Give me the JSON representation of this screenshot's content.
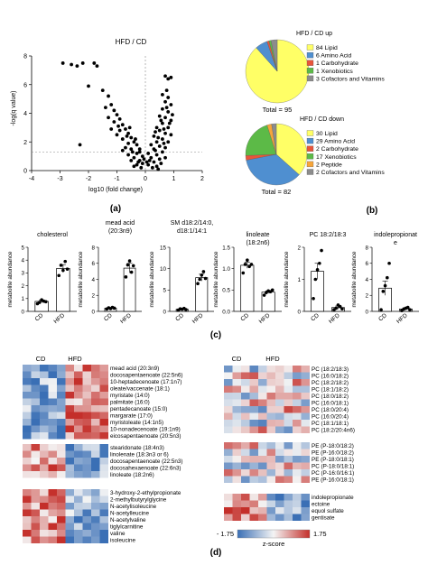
{
  "panel_labels": {
    "a": "(a)",
    "b": "(b)",
    "c": "(c)",
    "d": "(d)"
  },
  "chart_data": [
    {
      "type": "scatter",
      "title": "HFD / CD",
      "xlabel": "log10 (fold change)",
      "ylabel": "-log(q value)",
      "xlim": [
        -4,
        2
      ],
      "ylim": [
        0,
        8
      ],
      "xticks": [
        "-4",
        "-3",
        "-2",
        "-1",
        "0",
        "1",
        "2"
      ],
      "yticks": [
        "0",
        "2",
        "4",
        "6",
        "8"
      ],
      "threshold_y": 1.3,
      "threshold_x": 0,
      "grid": false,
      "points": [
        [
          -2.9,
          7.5
        ],
        [
          -2.6,
          7.4
        ],
        [
          -2.2,
          7.5
        ],
        [
          -2.4,
          7.3
        ],
        [
          -1.8,
          7.5
        ],
        [
          -1.7,
          7.3
        ],
        [
          -2.0,
          5.9
        ],
        [
          -1.5,
          5.6
        ],
        [
          -1.3,
          5.2
        ],
        [
          -1.2,
          4.6
        ],
        [
          -2.3,
          1.8
        ],
        [
          -1.1,
          4.2
        ],
        [
          -1.0,
          3.9
        ],
        [
          -0.9,
          3.6
        ],
        [
          -0.8,
          3.2
        ],
        [
          -1.3,
          3.7
        ],
        [
          -1.4,
          4.4
        ],
        [
          -1.1,
          3.4
        ],
        [
          -0.7,
          2.9
        ],
        [
          -0.6,
          2.6
        ],
        [
          -0.9,
          2.8
        ],
        [
          -0.5,
          2.3
        ],
        [
          -0.4,
          2.0
        ],
        [
          -0.3,
          1.8
        ],
        [
          -0.6,
          1.9
        ],
        [
          -0.8,
          2.2
        ],
        [
          -0.2,
          1.5
        ],
        [
          -0.5,
          1.5
        ],
        [
          -0.7,
          1.6
        ],
        [
          -0.3,
          1.2
        ],
        [
          -0.4,
          0.9
        ],
        [
          -0.2,
          0.7
        ],
        [
          -0.6,
          1.1
        ],
        [
          -0.1,
          0.5
        ],
        [
          -0.3,
          0.4
        ],
        [
          -0.5,
          0.7
        ],
        [
          -0.15,
          0.2
        ],
        [
          -0.25,
          0.6
        ],
        [
          -0.8,
          1.4
        ],
        [
          -1.0,
          2.5
        ],
        [
          -0.45,
          1.3
        ],
        [
          -0.35,
          2.2
        ],
        [
          -0.65,
          2.4
        ],
        [
          -0.55,
          3.0
        ],
        [
          -0.95,
          3.1
        ],
        [
          -1.2,
          2.9
        ],
        [
          -0.1,
          1.0
        ],
        [
          -0.2,
          1.3
        ],
        [
          -0.05,
          0.8
        ],
        [
          -0.4,
          0.3
        ],
        [
          0.7,
          6.6
        ],
        [
          0.9,
          6.5
        ],
        [
          0.8,
          6.4
        ],
        [
          0.75,
          5.6
        ],
        [
          0.6,
          5.3
        ],
        [
          0.8,
          5.1
        ],
        [
          0.7,
          4.8
        ],
        [
          0.9,
          4.6
        ],
        [
          0.6,
          4.3
        ],
        [
          0.8,
          4.1
        ],
        [
          0.5,
          3.8
        ],
        [
          0.7,
          3.7
        ],
        [
          0.9,
          3.5
        ],
        [
          0.6,
          3.3
        ],
        [
          0.4,
          3.0
        ],
        [
          0.8,
          3.0
        ],
        [
          0.5,
          2.8
        ],
        [
          0.7,
          2.6
        ],
        [
          0.3,
          2.4
        ],
        [
          0.9,
          2.5
        ],
        [
          0.6,
          2.2
        ],
        [
          0.4,
          2.0
        ],
        [
          0.2,
          1.8
        ],
        [
          0.8,
          2.0
        ],
        [
          0.5,
          1.7
        ],
        [
          0.3,
          1.5
        ],
        [
          0.7,
          1.6
        ],
        [
          0.1,
          1.2
        ],
        [
          0.4,
          1.1
        ],
        [
          0.6,
          1.3
        ],
        [
          0.2,
          0.9
        ],
        [
          0.5,
          0.8
        ],
        [
          0.3,
          0.6
        ],
        [
          0.1,
          0.4
        ],
        [
          0.4,
          0.3
        ],
        [
          0.7,
          0.9
        ],
        [
          0.25,
          0.2
        ],
        [
          0.15,
          0.7
        ],
        [
          0.55,
          0.5
        ],
        [
          0.35,
          1.4
        ],
        [
          0.45,
          2.3
        ],
        [
          0.65,
          2.9
        ],
        [
          0.85,
          3.3
        ],
        [
          0.75,
          4.4
        ],
        [
          0.95,
          3.9
        ],
        [
          0.55,
          3.5
        ],
        [
          0.35,
          2.7
        ],
        [
          0.65,
          1.9
        ],
        [
          0.05,
          0.6
        ],
        [
          0.45,
          0.1
        ]
      ]
    },
    {
      "type": "pie",
      "title": "HFD / CD up",
      "total_label": "Total = 95",
      "slices": [
        {
          "label": "84 Lipid",
          "value": 84,
          "color": "#ffff66"
        },
        {
          "label": "6 Amino Acid",
          "value": 6,
          "color": "#4f8fd0"
        },
        {
          "label": "1 Carbohydrate",
          "value": 1,
          "color": "#e8553a"
        },
        {
          "label": "1 Xenobiotics",
          "value": 1,
          "color": "#5cba47"
        },
        {
          "label": "3 Cofactors and Vitamins",
          "value": 3,
          "color": "#8c8c8c"
        }
      ]
    },
    {
      "type": "pie",
      "title": "HFD / CD down",
      "total_label": "Total = 82",
      "slices": [
        {
          "label": "30 Lipid",
          "value": 30,
          "color": "#ffff66"
        },
        {
          "label": "29 Amino Acid",
          "value": 29,
          "color": "#4f8fd0"
        },
        {
          "label": "2 Carbohydrate",
          "value": 2,
          "color": "#e8553a"
        },
        {
          "label": "17 Xenobiotics",
          "value": 17,
          "color": "#5cba47"
        },
        {
          "label": "2 Peptide",
          "value": 2,
          "color": "#f6a53a"
        },
        {
          "label": "2 Cofactors and Vitamins",
          "value": 2,
          "color": "#8c8c8c"
        }
      ]
    },
    {
      "type": "bar",
      "title": "cholesterol",
      "ylabel": "metabolite abundance",
      "categories": [
        "CD",
        "HFD"
      ],
      "values": [
        0.78,
        3.35
      ],
      "errors": [
        0.1,
        0.3
      ],
      "ylim": [
        0,
        5
      ],
      "yticks": [
        "0",
        "1",
        "2",
        "3",
        "4",
        "5"
      ],
      "points": [
        [
          0.6,
          0.7,
          0.9,
          0.8,
          0.75
        ],
        [
          2.8,
          3.6,
          3.2,
          3.9,
          3.3
        ]
      ]
    },
    {
      "type": "bar",
      "title": "mead acid (20:3n9)",
      "ylabel": "metabolite abundance",
      "categories": [
        "CD",
        "HFD"
      ],
      "values": [
        0.4,
        5.4
      ],
      "errors": [
        0.08,
        0.6
      ],
      "ylim": [
        0,
        8
      ],
      "yticks": [
        "0",
        "2",
        "4",
        "6",
        "8"
      ],
      "points": [
        [
          0.3,
          0.45,
          0.35,
          0.5,
          0.4
        ],
        [
          4.3,
          5.8,
          6.3,
          4.9,
          5.7
        ]
      ]
    },
    {
      "type": "bar",
      "title": "SM d18:2/14:0, d18:1/14:1",
      "ylabel": "metabolite abundance",
      "categories": [
        "CD",
        "HFD"
      ],
      "values": [
        0.5,
        7.9
      ],
      "errors": [
        0.1,
        0.8
      ],
      "ylim": [
        0,
        15
      ],
      "yticks": [
        "0",
        "5",
        "10",
        "15"
      ],
      "points": [
        [
          0.3,
          0.6,
          0.5,
          0.7,
          0.4
        ],
        [
          6.5,
          7.5,
          8.5,
          9.3,
          7.7
        ]
      ]
    },
    {
      "type": "bar",
      "title": "linoleate (18:2n6)",
      "ylabel": "metabolite abundance",
      "categories": [
        "CD",
        "HFD"
      ],
      "values": [
        1.08,
        0.45
      ],
      "errors": [
        0.07,
        0.03
      ],
      "ylim": [
        0,
        1.5
      ],
      "yticks": [
        "0.0",
        "0.5",
        "1.0",
        "1.5"
      ],
      "points": [
        [
          0.9,
          1.1,
          1.2,
          1.05,
          1.1
        ],
        [
          0.38,
          0.44,
          0.48,
          0.46,
          0.5
        ]
      ]
    },
    {
      "type": "bar",
      "title": "PC 18:2/18:3",
      "ylabel": "metabolite abundance",
      "categories": [
        "CD",
        "HFD"
      ],
      "values": [
        1.25,
        0.12
      ],
      "errors": [
        0.25,
        0.05
      ],
      "ylim": [
        0,
        2
      ],
      "yticks": [
        "0",
        "1",
        "2"
      ],
      "points": [
        [
          0.4,
          1.0,
          1.3,
          1.5,
          1.9
        ],
        [
          0.05,
          0.1,
          0.2,
          0.15,
          0.08
        ]
      ]
    },
    {
      "type": "bar",
      "title": "indolepropionate",
      "ylabel": "metabolite abundance",
      "categories": [
        "CD",
        "HFD"
      ],
      "values": [
        2.9,
        0.3
      ],
      "errors": [
        0.9,
        0.1
      ],
      "ylim": [
        0,
        8
      ],
      "yticks": [
        "0",
        "2",
        "4",
        "6",
        "8"
      ],
      "points": [
        [
          0.2,
          2.5,
          3.2,
          4.2,
          6.0
        ],
        [
          0.1,
          0.3,
          0.4,
          0.5,
          0.2
        ]
      ]
    },
    {
      "type": "heatmap",
      "group_labels": [
        "CD",
        "HFD"
      ],
      "blocks": [
        {
          "rows": [
            "mead acid (20:3n9)",
            "docosapentaenoate (22:5n6)",
            "10-heptadecenoate (17:1n7)",
            "oleate/vaccenate (18:1)",
            "myristate (14:0)",
            "palmitate (16:0)",
            "pentadecanoate (15:0)",
            "margarate (17:0)",
            "myristoleate (14:1n5)",
            "10-nonadecenoate (19:1n9)",
            "eicosapentaenoate (20:5n3)"
          ],
          "pattern": "low-high"
        },
        {
          "rows": [
            "stearidonate (18:4n3)",
            "linolenate (18:3n3 or 6)",
            "docosapentaenoate (22:5n3)",
            "docosahexaenoate (22:6n3)",
            "linoleate (18:2n6)"
          ],
          "pattern": "high-low"
        },
        {
          "rows": [
            "3-hydroxy-2-ethylpropionate",
            "2-methylbutyrylglycine",
            "N-acetylisoleucine",
            "N-acetylleucine",
            "N-acetylvaline",
            "tiglylcarnitine",
            "valine",
            "isoleucine"
          ],
          "pattern": "high-low"
        }
      ]
    },
    {
      "type": "heatmap",
      "group_labels": [
        "CD",
        "HFD"
      ],
      "blocks": [
        {
          "rows": [
            "PC (18:2/18:3)",
            "PC (16:0/18:2)",
            "PC (18:2/18:2)",
            "PC (18:1/18:2)",
            "PC (18:0/18:2)",
            "PC (16:0/18:1)",
            "PC (18:0/20:4)",
            "PC (16:0/20:4)",
            "PC (18:1/18:1)",
            "PC (18:2/20:4n6)"
          ],
          "pattern": "mixed"
        },
        {
          "rows": [
            "PE (P-18:0/18:2)",
            "PE (P-16:0/18:2)",
            "PE (P-18:0/18:1)",
            "PC (P-18:0/18:1)",
            "PC (P-16:0/16:1)",
            "PE (P-16:0/18:1)"
          ],
          "pattern": "mixed"
        },
        {
          "rows": [
            "indolepropionate",
            "ectoine",
            "equol sulfate",
            "gentisate"
          ],
          "pattern": "high-low"
        }
      ],
      "colorbar": {
        "min_label": "- 1.75",
        "max_label": "1.75",
        "title": "z-score"
      }
    }
  ]
}
